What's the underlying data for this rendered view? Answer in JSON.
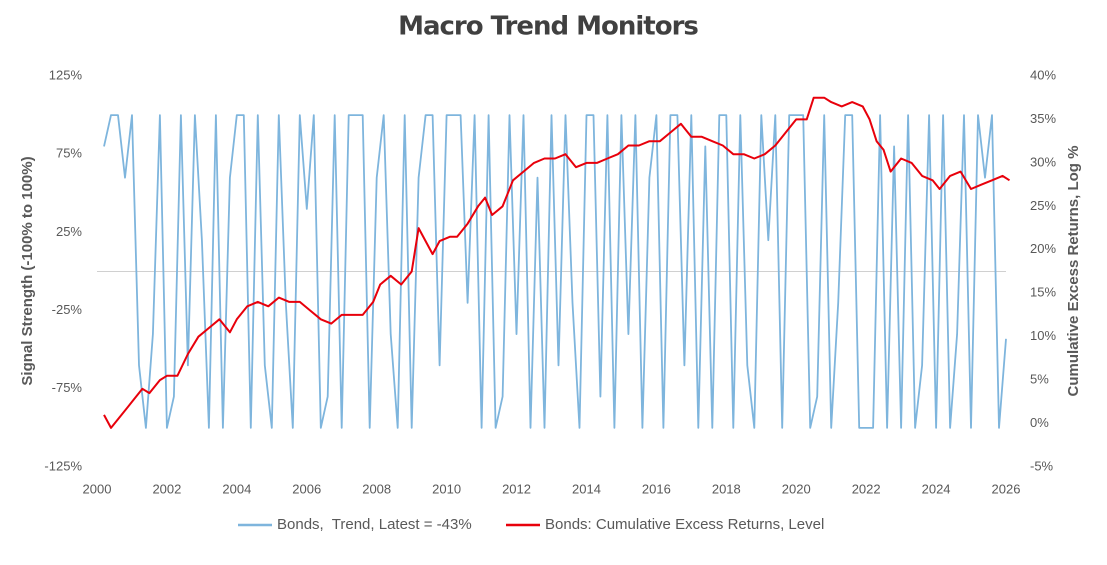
{
  "chart_data": {
    "type": "line",
    "title": "Macro Trend Monitors",
    "y_label": "Signal Strength (-100% to 100%)",
    "y2_label": "Cumulative Excess Returns, Log %",
    "xlim": [
      2000,
      2026
    ],
    "xticks": [
      2000,
      2002,
      2004,
      2006,
      2008,
      2010,
      2012,
      2014,
      2016,
      2018,
      2020,
      2022,
      2024,
      2026
    ],
    "ylim": [
      -125,
      125
    ],
    "yticks": [
      {
        "value": 125,
        "label": "125%"
      },
      {
        "value": 75,
        "label": "75%"
      },
      {
        "value": 25,
        "label": "25%"
      },
      {
        "value": -25,
        "label": "-25%"
      },
      {
        "value": -75,
        "label": "-75%"
      },
      {
        "value": -125,
        "label": "-125%"
      }
    ],
    "y2lim": [
      -5,
      40
    ],
    "y2ticks": [
      {
        "value": 40,
        "label": "40%"
      },
      {
        "value": 35,
        "label": "35%"
      },
      {
        "value": 30,
        "label": "30%"
      },
      {
        "value": 25,
        "label": "25%"
      },
      {
        "value": 20,
        "label": "20%"
      },
      {
        "value": 15,
        "label": "15%"
      },
      {
        "value": 10,
        "label": "10%"
      },
      {
        "value": 5,
        "label": "5%"
      },
      {
        "value": 0,
        "label": "0%"
      },
      {
        "value": -5,
        "label": "-5%"
      }
    ],
    "legend": "bottom",
    "series": [
      {
        "name": "Bonds,  Trend, Latest = -43%",
        "color": "#7eb5dd",
        "axis": "y",
        "x": [
          2000.2,
          2000.4,
          2000.6,
          2000.8,
          2001.0,
          2001.2,
          2001.4,
          2001.6,
          2001.8,
          2002.0,
          2002.2,
          2002.4,
          2002.6,
          2002.8,
          2003.0,
          2003.2,
          2003.4,
          2003.6,
          2003.8,
          2004.0,
          2004.2,
          2004.4,
          2004.6,
          2004.8,
          2005.0,
          2005.2,
          2005.4,
          2005.6,
          2005.8,
          2006.0,
          2006.2,
          2006.4,
          2006.6,
          2006.8,
          2007.0,
          2007.2,
          2007.4,
          2007.6,
          2007.8,
          2008.0,
          2008.2,
          2008.4,
          2008.6,
          2008.8,
          2009.0,
          2009.2,
          2009.4,
          2009.6,
          2009.8,
          2010.0,
          2010.2,
          2010.4,
          2010.6,
          2010.8,
          2011.0,
          2011.2,
          2011.4,
          2011.6,
          2011.8,
          2012.0,
          2012.2,
          2012.4,
          2012.6,
          2012.8,
          2013.0,
          2013.2,
          2013.4,
          2013.6,
          2013.8,
          2014.0,
          2014.2,
          2014.4,
          2014.6,
          2014.8,
          2015.0,
          2015.2,
          2015.4,
          2015.6,
          2015.8,
          2016.0,
          2016.2,
          2016.4,
          2016.6,
          2016.8,
          2017.0,
          2017.2,
          2017.4,
          2017.6,
          2017.8,
          2018.0,
          2018.2,
          2018.4,
          2018.6,
          2018.8,
          2019.0,
          2019.2,
          2019.4,
          2019.6,
          2019.8,
          2020.0,
          2020.2,
          2020.4,
          2020.6,
          2020.8,
          2021.0,
          2021.2,
          2021.4,
          2021.6,
          2021.8,
          2022.0,
          2022.2,
          2022.4,
          2022.6,
          2022.8,
          2023.0,
          2023.2,
          2023.4,
          2023.6,
          2023.8,
          2024.0,
          2024.2,
          2024.4,
          2024.6,
          2024.8,
          2025.0,
          2025.2,
          2025.4,
          2025.6,
          2025.8,
          2026.0
        ],
        "values": [
          80,
          100,
          100,
          60,
          100,
          -60,
          -100,
          -40,
          100,
          -100,
          -80,
          100,
          -60,
          100,
          20,
          -100,
          100,
          -100,
          60,
          100,
          100,
          -100,
          100,
          -60,
          -100,
          100,
          -20,
          -100,
          100,
          40,
          100,
          -100,
          -80,
          100,
          -100,
          100,
          100,
          100,
          -100,
          60,
          100,
          -40,
          -100,
          100,
          -100,
          60,
          100,
          100,
          -60,
          100,
          100,
          100,
          -20,
          100,
          -100,
          100,
          -100,
          -80,
          100,
          -40,
          100,
          -100,
          60,
          -100,
          100,
          -60,
          100,
          -20,
          -100,
          100,
          100,
          -80,
          100,
          -100,
          100,
          -40,
          100,
          -100,
          60,
          100,
          -100,
          100,
          100,
          -60,
          100,
          -100,
          80,
          -100,
          100,
          100,
          -100,
          100,
          -60,
          -100,
          100,
          20,
          100,
          -100,
          100,
          100,
          100,
          -100,
          -80,
          100,
          -100,
          -20,
          100,
          100,
          -100,
          -100,
          -100,
          100,
          -100,
          80,
          -100,
          100,
          -100,
          -60,
          100,
          -100,
          100,
          -100,
          -40,
          100,
          -100,
          100,
          60,
          100,
          -100,
          -43
        ]
      },
      {
        "name": "Bonds: Cumulative Excess Returns, Level",
        "color": "#e8000b",
        "axis": "y2",
        "x": [
          2000.2,
          2000.4,
          2000.7,
          2001.0,
          2001.3,
          2001.5,
          2001.8,
          2002.0,
          2002.3,
          2002.6,
          2002.9,
          2003.2,
          2003.5,
          2003.8,
          2004.0,
          2004.3,
          2004.6,
          2004.9,
          2005.2,
          2005.5,
          2005.8,
          2006.1,
          2006.4,
          2006.7,
          2007.0,
          2007.3,
          2007.6,
          2007.9,
          2008.1,
          2008.4,
          2008.7,
          2009.0,
          2009.2,
          2009.4,
          2009.6,
          2009.8,
          2010.1,
          2010.3,
          2010.6,
          2010.9,
          2011.1,
          2011.3,
          2011.6,
          2011.9,
          2012.2,
          2012.5,
          2012.8,
          2013.1,
          2013.4,
          2013.7,
          2014.0,
          2014.3,
          2014.6,
          2014.9,
          2015.2,
          2015.5,
          2015.8,
          2016.1,
          2016.4,
          2016.7,
          2017.0,
          2017.3,
          2017.6,
          2017.9,
          2018.2,
          2018.5,
          2018.8,
          2019.1,
          2019.4,
          2019.7,
          2020.0,
          2020.3,
          2020.5,
          2020.8,
          2021.0,
          2021.3,
          2021.6,
          2021.9,
          2022.1,
          2022.3,
          2022.5,
          2022.7,
          2023.0,
          2023.3,
          2023.6,
          2023.9,
          2024.1,
          2024.4,
          2024.7,
          2025.0,
          2025.3,
          2025.6,
          2025.9,
          2026.1
        ],
        "values": [
          1,
          -0.5,
          1,
          2.5,
          4,
          3.5,
          5,
          5.5,
          5.5,
          8,
          10,
          11,
          12,
          10.5,
          12,
          13.5,
          14,
          13.5,
          14.5,
          14,
          14,
          13,
          12,
          11.5,
          12.5,
          12.5,
          12.5,
          14,
          16,
          17,
          16,
          17.5,
          22.5,
          21,
          19.5,
          21,
          21.5,
          21.5,
          23,
          25,
          26,
          24,
          25,
          28,
          29,
          30,
          30.5,
          30.5,
          31,
          29.5,
          30,
          30,
          30.5,
          31,
          32,
          32,
          32.5,
          32.5,
          33.5,
          34.5,
          33,
          33,
          32.5,
          32,
          31,
          31,
          30.5,
          31,
          32,
          33.5,
          35,
          35,
          37.5,
          37.5,
          37,
          36.5,
          37,
          36.5,
          35,
          32.5,
          31.5,
          29,
          30.5,
          30,
          28.5,
          28,
          27,
          28.5,
          29,
          27,
          27.5,
          28,
          28.5,
          28
        ]
      }
    ]
  }
}
